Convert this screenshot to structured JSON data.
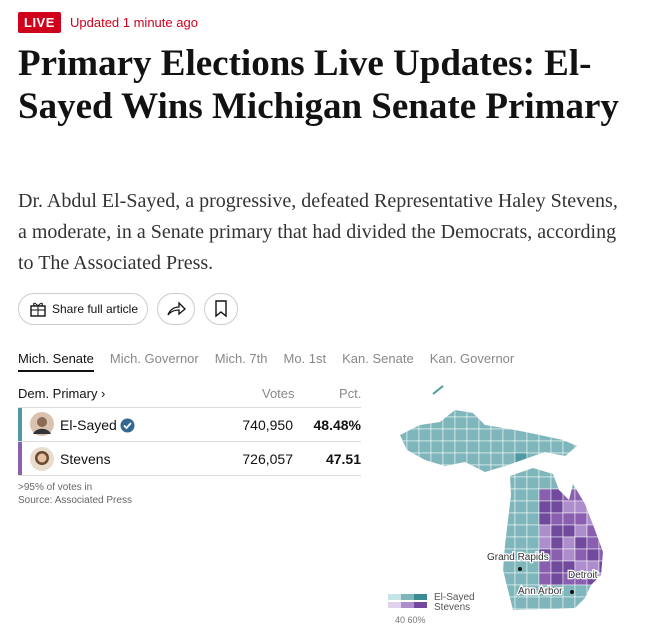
{
  "header": {
    "live": "LIVE",
    "updated": "Updated 1 minute ago"
  },
  "headline": "Primary Elections Live Updates: El-Sayed Wins Michigan Senate Primary",
  "summary": "Dr. Abdul El-Sayed, a progressive, defeated Representative Haley Stevens, a moderate, in a Senate primary that had divided the Democrats, according to The Associated Press.",
  "actions": {
    "share": "Share full article"
  },
  "tabs": [
    "Mich. Senate",
    "Mich. Governor",
    "Mich. 7th",
    "Mo. 1st",
    "Kan. Senate",
    "Kan. Governor"
  ],
  "results": {
    "race": "Dem. Primary ›",
    "columns": [
      "Votes",
      "Pct."
    ],
    "rows": [
      {
        "name": "El-Sayed",
        "votes": "740,950",
        "pct": "48.48%"
      },
      {
        "name": "Stevens",
        "votes": "726,057",
        "pct": "47.51"
      }
    ],
    "notes": [
      ">95% of votes in",
      "Source: Associated Press"
    ]
  },
  "map": {
    "cities": [
      "Grand Rapids",
      "Detroit",
      "Ann Arbor"
    ],
    "legend": {
      "series": [
        "El-Sayed",
        "Stevens"
      ],
      "scale": "40 60%"
    }
  }
}
